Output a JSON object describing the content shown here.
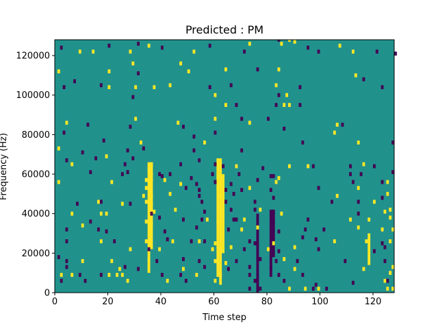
{
  "chart_data": {
    "type": "heatmap",
    "title": "Predicted : PM",
    "xlabel": "Time step",
    "ylabel": "Frequency (Hz)",
    "xlim": [
      0,
      128
    ],
    "ylim": [
      0,
      128000
    ],
    "x_ticks": [
      0,
      20,
      40,
      60,
      80,
      100,
      120
    ],
    "x_tick_labels": [
      "0",
      "20",
      "40",
      "60",
      "80",
      "100",
      "120"
    ],
    "y_ticks": [
      0,
      20000,
      40000,
      60000,
      80000,
      100000,
      120000
    ],
    "y_tick_labels": [
      "0",
      "20000",
      "40000",
      "60000",
      "80000",
      "100000",
      "120000"
    ],
    "grid": false,
    "legend": "none",
    "colormap": "viridis",
    "value_levels": [
      0,
      1,
      2
    ],
    "background_value": 1,
    "colors": {
      "0": "#440154",
      "1": "#21918c",
      "2": "#fde725"
    },
    "row_height_hz": 2000,
    "cells": [
      [
        2,
        123000,
        0
      ],
      [
        9,
        121000,
        2
      ],
      [
        14,
        121000,
        2
      ],
      [
        20,
        124000,
        0
      ],
      [
        28,
        121000,
        2
      ],
      [
        31,
        125000,
        0
      ],
      [
        35,
        124000,
        2
      ],
      [
        40,
        123000,
        0
      ],
      [
        52,
        121000,
        2
      ],
      [
        58,
        124000,
        0
      ],
      [
        71,
        121000,
        0
      ],
      [
        73,
        125000,
        2
      ],
      [
        84,
        127000,
        0
      ],
      [
        85,
        125000,
        2
      ],
      [
        88,
        127000,
        2
      ],
      [
        90,
        126000,
        2
      ],
      [
        95,
        123000,
        0
      ],
      [
        99,
        121000,
        0
      ],
      [
        107,
        124000,
        2
      ],
      [
        112,
        121000,
        2
      ],
      [
        121,
        121000,
        0
      ],
      [
        128,
        120000,
        0
      ],
      [
        1,
        111000,
        2
      ],
      [
        20,
        111000,
        2
      ],
      [
        29,
        115000,
        2
      ],
      [
        31,
        110000,
        0
      ],
      [
        47,
        115000,
        2
      ],
      [
        50,
        111000,
        2
      ],
      [
        64,
        112000,
        2
      ],
      [
        76,
        112000,
        0
      ],
      [
        84,
        112000,
        2
      ],
      [
        113,
        109000,
        2
      ],
      [
        116,
        107000,
        0
      ],
      [
        3,
        103000,
        0
      ],
      [
        7,
        106000,
        0
      ],
      [
        17,
        104000,
        0
      ],
      [
        20,
        103000,
        2
      ],
      [
        30,
        103000,
        2
      ],
      [
        37,
        103000,
        2
      ],
      [
        43,
        104000,
        2
      ],
      [
        58,
        103000,
        0
      ],
      [
        66,
        104000,
        0
      ],
      [
        83,
        104000,
        2
      ],
      [
        92,
        103000,
        0
      ],
      [
        123,
        103000,
        0
      ],
      [
        29,
        98000,
        0
      ],
      [
        60,
        99000,
        2
      ],
      [
        84,
        99000,
        0
      ],
      [
        87,
        99000,
        2
      ],
      [
        64,
        94000,
        2
      ],
      [
        68,
        94000,
        0
      ],
      [
        83,
        94000,
        0
      ],
      [
        86,
        94000,
        2
      ],
      [
        88,
        94000,
        2
      ],
      [
        92,
        94000,
        0
      ],
      [
        30,
        87000,
        2
      ],
      [
        46,
        85000,
        2
      ],
      [
        60,
        87000,
        2
      ],
      [
        70,
        87000,
        0
      ],
      [
        80,
        87000,
        0
      ],
      [
        4,
        85000,
        2
      ],
      [
        12,
        84000,
        0
      ],
      [
        28,
        83000,
        0
      ],
      [
        48,
        83000,
        0
      ],
      [
        73,
        85000,
        2
      ],
      [
        86,
        82000,
        0
      ],
      [
        106,
        84000,
        2
      ],
      [
        108,
        84000,
        0
      ],
      [
        3,
        80000,
        0
      ],
      [
        52,
        78000,
        0
      ],
      [
        60,
        80000,
        0
      ],
      [
        105,
        80000,
        2
      ],
      [
        18,
        76000,
        0
      ],
      [
        32,
        75000,
        2
      ],
      [
        56,
        75000,
        2
      ],
      [
        93,
        75000,
        0
      ],
      [
        114,
        75000,
        2
      ],
      [
        127,
        75000,
        0
      ],
      [
        1,
        72000,
        2
      ],
      [
        10,
        70000,
        0
      ],
      [
        27,
        71000,
        0
      ],
      [
        33,
        72000,
        0
      ],
      [
        52,
        71000,
        0
      ],
      [
        70,
        71000,
        0
      ],
      [
        4,
        66000,
        0
      ],
      [
        6,
        64000,
        2
      ],
      [
        15,
        67000,
        0
      ],
      [
        19,
        68000,
        2
      ],
      [
        29,
        67000,
        0
      ],
      [
        26,
        64000,
        0
      ],
      [
        35,
        62000,
        2
      ],
      [
        36,
        64000,
        2
      ],
      [
        47,
        64000,
        0
      ],
      [
        54,
        66000,
        0
      ],
      [
        60,
        64000,
        0
      ],
      [
        62,
        64000,
        2
      ],
      [
        63,
        63000,
        0
      ],
      [
        68,
        63000,
        2
      ],
      [
        78,
        62000,
        0
      ],
      [
        88,
        63000,
        2
      ],
      [
        95,
        63000,
        2
      ],
      [
        97,
        63000,
        0
      ],
      [
        111,
        63000,
        0
      ],
      [
        116,
        64000,
        2
      ],
      [
        120,
        63000,
        0
      ],
      [
        13,
        60000,
        0
      ],
      [
        25,
        59000,
        0
      ],
      [
        27,
        60000,
        0
      ],
      [
        36,
        59000,
        2
      ],
      [
        39,
        59000,
        0
      ],
      [
        40,
        58000,
        0
      ],
      [
        43,
        59000,
        0
      ],
      [
        51,
        57000,
        0
      ],
      [
        59,
        59000,
        0
      ],
      [
        61,
        58000,
        2
      ],
      [
        69,
        59000,
        0
      ],
      [
        81,
        58000,
        0
      ],
      [
        82,
        58000,
        0
      ],
      [
        84,
        57000,
        2
      ],
      [
        111,
        59000,
        0
      ],
      [
        115,
        59000,
        0
      ],
      [
        127,
        60000,
        0
      ],
      [
        1,
        55000,
        2
      ],
      [
        21,
        55000,
        2
      ],
      [
        34,
        56000,
        2
      ],
      [
        36,
        56000,
        2
      ],
      [
        41,
        56000,
        2
      ],
      [
        47,
        54000,
        2
      ],
      [
        53,
        54000,
        0
      ],
      [
        60,
        55000,
        0
      ],
      [
        62,
        54000,
        2
      ],
      [
        66,
        54000,
        0
      ],
      [
        76,
        56000,
        0
      ],
      [
        83,
        55000,
        2
      ],
      [
        112,
        55000,
        0
      ],
      [
        123,
        55000,
        0
      ],
      [
        125,
        55000,
        2
      ],
      [
        34,
        52000,
        2
      ],
      [
        49,
        52000,
        0
      ],
      [
        54,
        51000,
        0
      ],
      [
        61,
        52000,
        2
      ],
      [
        64,
        51000,
        0
      ],
      [
        70,
        51000,
        0
      ],
      [
        73,
        52000,
        2
      ],
      [
        81,
        51000,
        0
      ],
      [
        99,
        52000,
        0
      ],
      [
        114,
        52000,
        2
      ],
      [
        33,
        48000,
        2
      ],
      [
        36,
        48000,
        2
      ],
      [
        43,
        49000,
        2
      ],
      [
        54,
        48000,
        0
      ],
      [
        62,
        48000,
        2
      ],
      [
        67,
        49000,
        0
      ],
      [
        82,
        47000,
        0
      ],
      [
        106,
        48000,
        2
      ],
      [
        123,
        47000,
        0
      ],
      [
        125,
        49000,
        2
      ],
      [
        8,
        44000,
        0
      ],
      [
        16,
        45000,
        2
      ],
      [
        17,
        45000,
        0
      ],
      [
        25,
        44000,
        2
      ],
      [
        28,
        44000,
        0
      ],
      [
        34,
        45000,
        2
      ],
      [
        36,
        44000,
        2
      ],
      [
        55,
        45000,
        0
      ],
      [
        64,
        45000,
        0
      ],
      [
        75,
        45000,
        0
      ],
      [
        104,
        45000,
        0
      ],
      [
        114,
        45000,
        0
      ],
      [
        120,
        45000,
        2
      ],
      [
        6,
        39000,
        2
      ],
      [
        17,
        39000,
        2
      ],
      [
        19,
        39000,
        2
      ],
      [
        36,
        39000,
        0
      ],
      [
        37,
        40000,
        2
      ],
      [
        45,
        41000,
        2
      ],
      [
        56,
        40000,
        0
      ],
      [
        66,
        41000,
        0
      ],
      [
        75,
        41000,
        0
      ],
      [
        77,
        41000,
        2
      ],
      [
        82,
        40000,
        0
      ],
      [
        85,
        39000,
        2
      ],
      [
        114,
        39000,
        0
      ],
      [
        124,
        40000,
        2
      ],
      [
        126,
        41000,
        2
      ],
      [
        10,
        33000,
        2
      ],
      [
        13,
        35000,
        0
      ],
      [
        34,
        35000,
        2
      ],
      [
        36,
        34000,
        2
      ],
      [
        39,
        37000,
        0
      ],
      [
        48,
        36000,
        0
      ],
      [
        55,
        36000,
        0
      ],
      [
        57,
        36000,
        2
      ],
      [
        61,
        35000,
        2
      ],
      [
        63,
        35000,
        2
      ],
      [
        67,
        36000,
        0
      ],
      [
        68,
        36000,
        0
      ],
      [
        71,
        36000,
        2
      ],
      [
        82,
        35000,
        0
      ],
      [
        95,
        36000,
        0
      ],
      [
        111,
        36000,
        2
      ],
      [
        118,
        36000,
        2
      ],
      [
        126,
        37000,
        2
      ],
      [
        4,
        31000,
        0
      ],
      [
        16,
        31000,
        0
      ],
      [
        19,
        30000,
        0
      ],
      [
        41,
        30000,
        0
      ],
      [
        53,
        32000,
        0
      ],
      [
        62,
        31000,
        2
      ],
      [
        65,
        31000,
        0
      ],
      [
        70,
        31000,
        2
      ],
      [
        76,
        32000,
        2
      ],
      [
        84,
        30000,
        0
      ],
      [
        94,
        31000,
        0
      ],
      [
        101,
        31000,
        0
      ],
      [
        114,
        32000,
        2
      ],
      [
        123,
        31000,
        2
      ],
      [
        127,
        31000,
        2
      ],
      [
        4,
        25000,
        0
      ],
      [
        17,
        25000,
        2
      ],
      [
        22,
        25000,
        0
      ],
      [
        34,
        25000,
        2
      ],
      [
        42,
        26000,
        0
      ],
      [
        44,
        25000,
        2
      ],
      [
        51,
        25000,
        0
      ],
      [
        54,
        25000,
        2
      ],
      [
        56,
        25000,
        0
      ],
      [
        60,
        24000,
        2
      ],
      [
        73,
        25000,
        0
      ],
      [
        75,
        24000,
        0
      ],
      [
        82,
        24000,
        2
      ],
      [
        93,
        27000,
        0
      ],
      [
        98,
        26000,
        0
      ],
      [
        105,
        25000,
        2
      ],
      [
        117,
        25000,
        2
      ],
      [
        123,
        24000,
        0
      ],
      [
        126,
        25000,
        2
      ],
      [
        28,
        21000,
        2
      ],
      [
        35,
        21000,
        0
      ],
      [
        39,
        21000,
        2
      ],
      [
        59,
        21000,
        2
      ],
      [
        62,
        21000,
        2
      ],
      [
        66,
        22000,
        2
      ],
      [
        71,
        21000,
        0
      ],
      [
        80,
        21000,
        2
      ],
      [
        84,
        20000,
        0
      ],
      [
        90,
        22000,
        2
      ],
      [
        99,
        21000,
        0
      ],
      [
        120,
        20000,
        0
      ],
      [
        124,
        22000,
        0
      ],
      [
        1,
        17000,
        0
      ],
      [
        4,
        15000,
        0
      ],
      [
        10,
        15000,
        2
      ],
      [
        21,
        15000,
        2
      ],
      [
        35,
        16000,
        2
      ],
      [
        38,
        15000,
        0
      ],
      [
        48,
        16000,
        0
      ],
      [
        54,
        15000,
        0
      ],
      [
        60,
        15000,
        2
      ],
      [
        64,
        14000,
        2
      ],
      [
        68,
        15000,
        0
      ],
      [
        77,
        16000,
        0
      ],
      [
        83,
        15000,
        0
      ],
      [
        86,
        16000,
        2
      ],
      [
        91,
        15000,
        0
      ],
      [
        109,
        15000,
        0
      ],
      [
        124,
        15000,
        0
      ],
      [
        4,
        12000,
        0
      ],
      [
        24,
        11000,
        2
      ],
      [
        26,
        12000,
        0
      ],
      [
        31,
        11000,
        0
      ],
      [
        35,
        12000,
        2
      ],
      [
        48,
        11000,
        2
      ],
      [
        56,
        12000,
        0
      ],
      [
        65,
        11000,
        0
      ],
      [
        73,
        12000,
        0
      ],
      [
        81,
        11000,
        0
      ],
      [
        90,
        11000,
        2
      ],
      [
        116,
        11000,
        2
      ],
      [
        127,
        12000,
        2
      ],
      [
        2,
        8000,
        2
      ],
      [
        6,
        8000,
        2
      ],
      [
        9,
        8000,
        0
      ],
      [
        17,
        8000,
        0
      ],
      [
        20,
        8000,
        2
      ],
      [
        23,
        8000,
        2
      ],
      [
        25,
        8000,
        2
      ],
      [
        40,
        8000,
        0
      ],
      [
        47,
        8000,
        0
      ],
      [
        53,
        8000,
        2
      ],
      [
        62,
        8000,
        2
      ],
      [
        73,
        8000,
        0
      ],
      [
        84,
        8000,
        0
      ],
      [
        93,
        8000,
        0
      ],
      [
        126,
        9000,
        2
      ],
      [
        2,
        5000,
        0
      ],
      [
        11,
        5000,
        0
      ],
      [
        27,
        5000,
        2
      ],
      [
        42,
        5000,
        2
      ],
      [
        49,
        5000,
        0
      ],
      [
        60,
        5000,
        2
      ],
      [
        75,
        5000,
        0
      ],
      [
        86,
        5000,
        0
      ],
      [
        98,
        3000,
        0
      ],
      [
        112,
        4000,
        0
      ],
      [
        124,
        5000,
        2
      ],
      [
        125,
        5000,
        0
      ],
      [
        73,
        1000,
        0
      ],
      [
        77,
        1000,
        0
      ],
      [
        88,
        1000,
        2
      ],
      [
        94,
        1000,
        2
      ],
      [
        97,
        1000,
        0
      ],
      [
        99,
        1000,
        2
      ],
      [
        102,
        1000,
        0
      ],
      [
        125,
        1000,
        2
      ],
      [
        127,
        1000,
        2
      ]
    ],
    "bands": [
      [
        35,
        36,
        10000,
        66000,
        2
      ],
      [
        36,
        37,
        22000,
        66000,
        2
      ],
      [
        61,
        62,
        8000,
        68000,
        2
      ],
      [
        62,
        63,
        4000,
        68000,
        2
      ],
      [
        63,
        64,
        20000,
        60000,
        2
      ],
      [
        81,
        82,
        8000,
        42000,
        0
      ],
      [
        82,
        83,
        18000,
        42000,
        0
      ],
      [
        76,
        77,
        0,
        40000,
        0
      ],
      [
        118,
        119,
        14000,
        30000,
        2
      ]
    ]
  }
}
